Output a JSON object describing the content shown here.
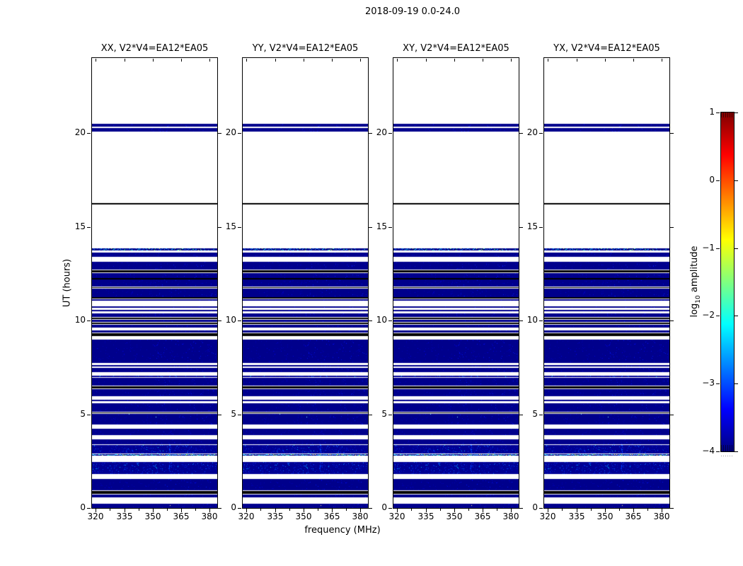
{
  "chart_data": {
    "type": "heatmap",
    "title": "2018-09-19 0.0-24.0",
    "xlabel": "frequency (MHz)",
    "ylabel": "UT (hours)",
    "panels": [
      {
        "title": "XX, V2*V4=EA12*EA05"
      },
      {
        "title": "YY, V2*V4=EA12*EA05"
      },
      {
        "title": "XY, V2*V4=EA12*EA05"
      },
      {
        "title": "YX, V2*V4=EA12*EA05"
      }
    ],
    "xlim": [
      318,
      384
    ],
    "ylim": [
      0,
      24
    ],
    "x_ticks": [
      320,
      335,
      350,
      365,
      380
    ],
    "x_tick_labels": [
      "320",
      "335",
      "350",
      "365",
      "380"
    ],
    "x_minor_ticks": [
      327.5,
      342.5,
      357.5,
      372.5
    ],
    "y_ticks": [
      0,
      5,
      10,
      15,
      20
    ],
    "y_tick_labels": [
      "0",
      "5",
      "10",
      "15",
      "20"
    ],
    "bands_common_to_all_panels": true,
    "band_types": {
      "d": "dark blue data block",
      "b": "brighter speckled data block",
      "k": "black row (flagged)",
      "s": "thin row with multicolor speckles",
      "unlisted time ranges": "white (no data)"
    },
    "bands": [
      [
        20.34,
        20.49,
        "d"
      ],
      [
        20.08,
        20.28,
        "d"
      ],
      [
        16.19,
        16.27,
        "k"
      ],
      [
        13.74,
        13.86,
        "s"
      ],
      [
        13.4,
        13.62,
        "d"
      ],
      [
        12.72,
        13.13,
        "d"
      ],
      [
        12.57,
        12.68,
        "k"
      ],
      [
        12.26,
        12.53,
        "d"
      ],
      [
        12.2,
        12.25,
        "k"
      ],
      [
        11.81,
        12.19,
        "d"
      ],
      [
        11.72,
        11.78,
        "k"
      ],
      [
        11.25,
        11.7,
        "d"
      ],
      [
        11.17,
        11.23,
        "k"
      ],
      [
        11.06,
        11.14,
        "d"
      ],
      [
        10.68,
        10.76,
        "d"
      ],
      [
        10.49,
        10.57,
        "d"
      ],
      [
        10.19,
        10.38,
        "d"
      ],
      [
        10.08,
        10.15,
        "k"
      ],
      [
        9.92,
        10.04,
        "d"
      ],
      [
        9.81,
        9.89,
        "k"
      ],
      [
        9.62,
        9.77,
        "d"
      ],
      [
        9.36,
        9.48,
        "d"
      ],
      [
        9.17,
        9.32,
        "k"
      ],
      [
        7.74,
        8.98,
        "d"
      ],
      [
        7.56,
        7.63,
        "d"
      ],
      [
        7.25,
        7.47,
        "d"
      ],
      [
        6.98,
        7.06,
        "b"
      ],
      [
        6.53,
        6.94,
        "d"
      ],
      [
        6.38,
        6.49,
        "k"
      ],
      [
        5.96,
        6.34,
        "d"
      ],
      [
        5.7,
        5.78,
        "d"
      ],
      [
        5.13,
        5.58,
        "d"
      ],
      [
        5.05,
        5.1,
        "k"
      ],
      [
        4.45,
        5.03,
        "d"
      ],
      [
        3.89,
        4.23,
        "d"
      ],
      [
        3.4,
        3.66,
        "d"
      ],
      [
        2.91,
        3.36,
        "b"
      ],
      [
        2.79,
        2.88,
        "s"
      ],
      [
        1.81,
        2.45,
        "b"
      ],
      [
        0.94,
        1.55,
        "d"
      ],
      [
        0.75,
        0.91,
        "k"
      ],
      [
        0.57,
        0.72,
        "d"
      ],
      [
        0.0,
        0.23,
        "d"
      ]
    ],
    "colorbar": {
      "colormap": "jet",
      "range": [
        -4,
        1
      ],
      "ticks": [
        1,
        0,
        -1,
        -2,
        -3,
        -4
      ],
      "tick_labels": [
        "1",
        "0",
        "−1",
        "−2",
        "−3",
        "−4"
      ],
      "label_prefix": "log",
      "label_sub": "10",
      "label_suffix": " amplitude"
    },
    "colors": {
      "data_base": "#00008C",
      "bright_base": "#000094",
      "flag_black": "#000000",
      "background": "#ffffff"
    },
    "legend": "none",
    "grid": "off"
  }
}
